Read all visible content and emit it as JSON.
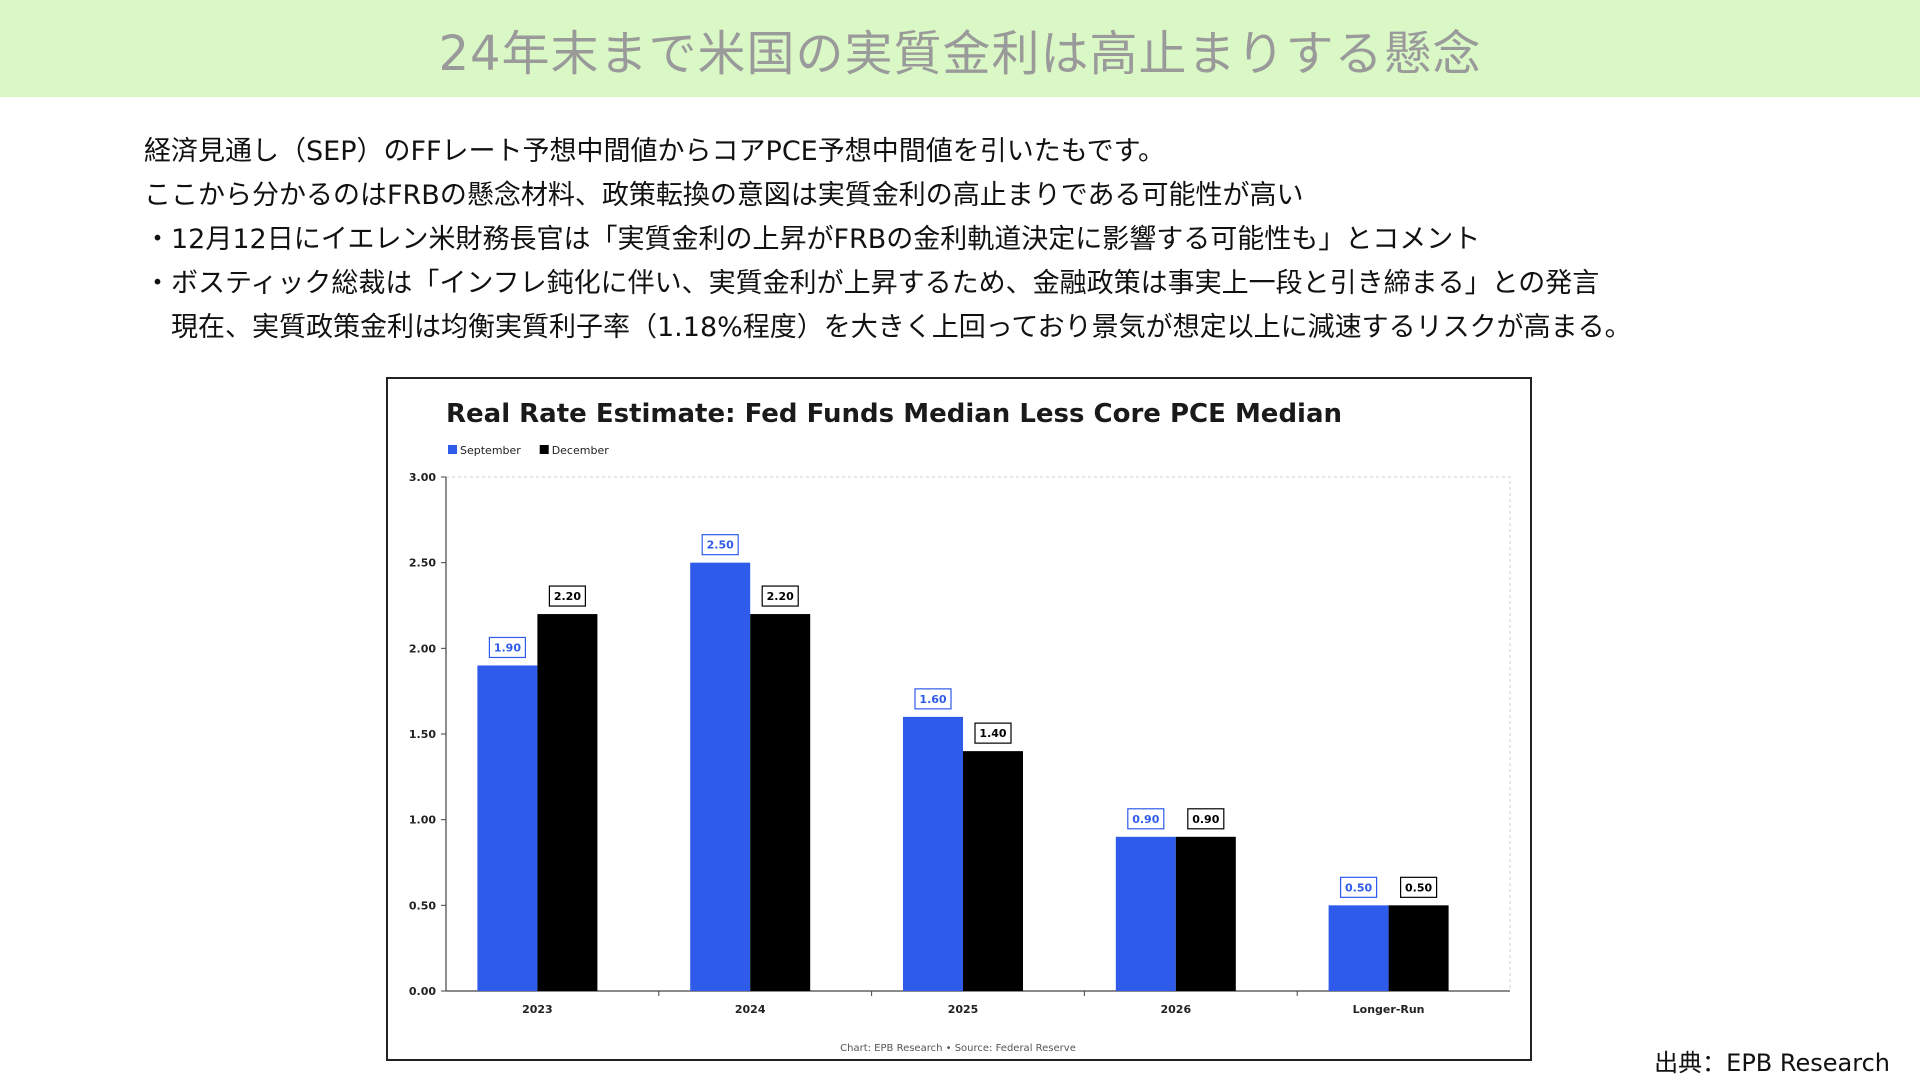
{
  "slide": {
    "title": "24年末まで米国の実質金利は高止まりする懸念",
    "lines": [
      "経済見通し（SEP）のFFレート予想中間値からコアPCE予想中間値を引いたもです。",
      "ここから分かるのはFRBの懸念材料、政策転換の意図は実質金利の高止まりである可能性が高い",
      "・12月12日にイエレン米財務長官は「実質金利の上昇がFRBの金利軌道決定に影響する可能性も」とコメント",
      "・ボスティック総裁は「インフレ鈍化に伴い、実質金利が上昇するため、金融政策は事実上一段と引き締まる」との発言",
      "　現在、実質政策金利は均衡実質利子率（1.18%程度）を大きく上回っており景気が想定以上に減速するリスクが高まる。"
    ],
    "source": "出典：EPB Research"
  },
  "chart_data": {
    "type": "bar",
    "title": "Real Rate Estimate: Fed Funds Median Less Core PCE Median",
    "categories": [
      "2023",
      "2024",
      "2025",
      "2026",
      "Longer-Run"
    ],
    "series": [
      {
        "name": "September",
        "color": "#2f5bea",
        "values": [
          1.9,
          2.5,
          1.6,
          0.9,
          0.5
        ]
      },
      {
        "name": "December",
        "color": "#000000",
        "values": [
          2.2,
          2.2,
          1.4,
          0.9,
          0.5
        ]
      }
    ],
    "y_ticks": [
      "0.00",
      "0.50",
      "1.00",
      "1.50",
      "2.00",
      "2.50",
      "3.00"
    ],
    "ylim": [
      0,
      3.0
    ],
    "legend_position": "top-left",
    "data_labels": true,
    "grid": false,
    "footer": "Chart: EPB Research  •  Source: Federal Reserve"
  }
}
